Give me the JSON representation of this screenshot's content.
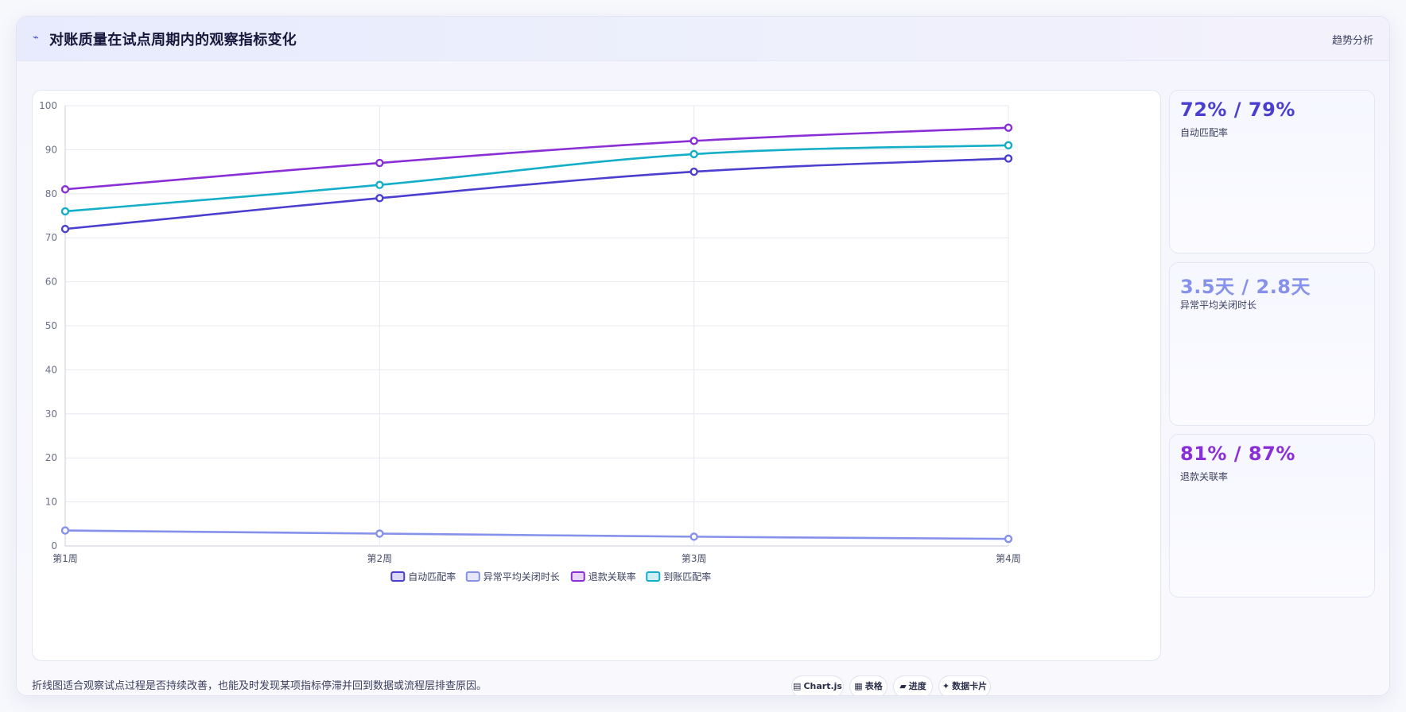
{
  "header": {
    "icon": "pulse-icon",
    "title": "对账质量在试点周期内的观察指标变化",
    "tag": "趋势分析"
  },
  "kpis": [
    {
      "value": "72% / 79%",
      "label": "自动匹配率",
      "color": "#4b3fcf"
    },
    {
      "value": "3.5天 / 2.8天",
      "label": "异常平均关闭时长",
      "color": "#8591ea"
    },
    {
      "value": "81% / 87%",
      "label": "退款关联率",
      "color": "#8a2fd6"
    }
  ],
  "footer": {
    "note": "折线图适合观察试点过程是否持续改善，也能及时发现某项指标停滞并回到数据或流程层排查原因。",
    "chips": [
      {
        "icon": "chart-icon",
        "glyph": "▤",
        "label": "Chart.js"
      },
      {
        "icon": "table-icon",
        "glyph": "▦",
        "label": "表格"
      },
      {
        "icon": "progress-icon",
        "glyph": "▰",
        "label": "进度"
      },
      {
        "icon": "sparkle-icon",
        "glyph": "✦",
        "label": "数据卡片"
      }
    ]
  },
  "chart_data": {
    "type": "line",
    "categories": [
      "第1周",
      "第2周",
      "第3周",
      "第4周"
    ],
    "ylim": [
      0,
      100
    ],
    "yticks": [
      0,
      10,
      20,
      30,
      40,
      50,
      60,
      70,
      80,
      90,
      100
    ],
    "grid": true,
    "legend": "bottom",
    "series": [
      {
        "name": "自动匹配率",
        "color": "#4b3fcf",
        "values": [
          72,
          79,
          85,
          88
        ]
      },
      {
        "name": "异常平均关闭时长",
        "color": "#8591ea",
        "values": [
          3.5,
          2.8,
          2.1,
          1.6
        ]
      },
      {
        "name": "退款关联率",
        "color": "#8a2fd6",
        "values": [
          81,
          87,
          92,
          95
        ]
      },
      {
        "name": "到账匹配率",
        "color": "#14aec8",
        "values": [
          76,
          82,
          89,
          91
        ]
      }
    ]
  }
}
